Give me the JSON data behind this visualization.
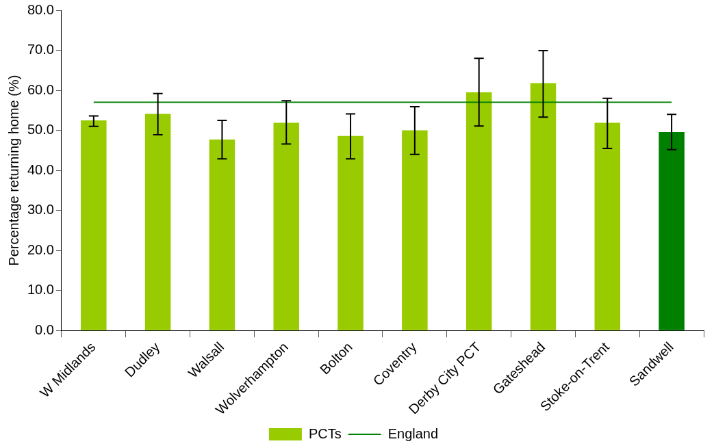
{
  "chart_data": {
    "type": "bar",
    "ylabel": "Percentage returning home (%)",
    "categories": [
      "W Midlands",
      "Dudley",
      "Walsall",
      "Wolverhampton",
      "Bolton",
      "Coventry",
      "Derby City PCT",
      "Gateshead",
      "Stoke-on-Trent",
      "Sandwell"
    ],
    "series": [
      {
        "name": "PCTs",
        "color": "#99cc00",
        "colors": [
          "#99cc00",
          "#99cc00",
          "#99cc00",
          "#99cc00",
          "#99cc00",
          "#99cc00",
          "#99cc00",
          "#99cc00",
          "#99cc00",
          "#008000"
        ],
        "values": [
          52.5,
          54.1,
          47.7,
          51.9,
          48.6,
          50.0,
          59.5,
          61.8,
          51.9,
          49.6
        ],
        "errors": [
          [
            51.0,
            53.6
          ],
          [
            48.9,
            59.2
          ],
          [
            42.9,
            52.5
          ],
          [
            46.6,
            57.4
          ],
          [
            42.9,
            54.1
          ],
          [
            44.0,
            55.9
          ],
          [
            51.1,
            68.0
          ],
          [
            53.3,
            69.9
          ],
          [
            45.5,
            58.0
          ],
          [
            45.2,
            54.0
          ]
        ]
      },
      {
        "type": "line",
        "name": "England",
        "color": "#008000",
        "values": [
          57.0,
          57.0,
          57.0,
          57.0,
          57.0,
          57.0,
          57.0,
          57.0,
          57.0,
          57.0
        ]
      }
    ],
    "ylim": [
      0,
      80
    ],
    "yticks": [
      {
        "value": 0,
        "label": "0.0"
      },
      {
        "value": 10,
        "label": "10.0"
      },
      {
        "value": 20,
        "label": "20.0"
      },
      {
        "value": 30,
        "label": "30.0"
      },
      {
        "value": 40,
        "label": "40.0"
      },
      {
        "value": 50,
        "label": "50.0"
      },
      {
        "value": 60,
        "label": "60.0"
      },
      {
        "value": 70,
        "label": "70.0"
      },
      {
        "value": 80,
        "label": "80.0"
      }
    ],
    "grid": false,
    "legend": "bottom",
    "marker": "none"
  }
}
